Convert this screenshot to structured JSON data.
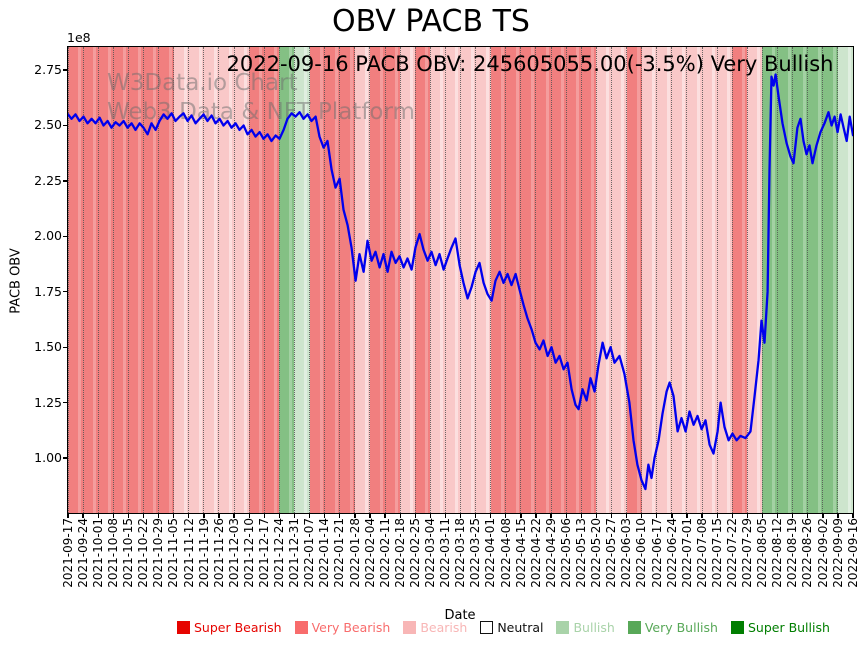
{
  "title": "OBV PACB TS",
  "subtitle": "2022-09-16 PACB OBV: 245605055.00(-3.5%) Very Bullish",
  "watermark": {
    "line1": "W3Data.io Chart",
    "line2": "Web3 Data & NFT Platform"
  },
  "axes": {
    "y_label": "PACB OBV",
    "x_label": "Date",
    "y_offset_text": "1e8"
  },
  "legend": [
    {
      "label": "Super Bearish",
      "swatch": "#e60400",
      "text": "#e60400",
      "border": ""
    },
    {
      "label": "Very Bearish",
      "swatch": "#f86c6c",
      "text": "#f86c6c",
      "border": ""
    },
    {
      "label": "Bearish",
      "swatch": "#f8b6b6",
      "text": "#f8b6b6",
      "border": ""
    },
    {
      "label": "Neutral",
      "swatch": "#ffffff",
      "text": "#111111",
      "border": "#111111"
    },
    {
      "label": "Bullish",
      "swatch": "#a9d3a9",
      "text": "#a9d3a9",
      "border": ""
    },
    {
      "label": "Very Bullish",
      "swatch": "#58a858",
      "text": "#58a858",
      "border": ""
    },
    {
      "label": "Super Bullish",
      "swatch": "#007e00",
      "text": "#007e00",
      "border": ""
    }
  ],
  "chart_data": {
    "type": "line",
    "title": "OBV PACB TS",
    "xlabel": "Date",
    "ylabel": "PACB OBV",
    "y_scale": "1e8",
    "ylim": [
      0.752,
      2.854
    ],
    "y_ticks": [
      "1.00",
      "1.25",
      "1.50",
      "1.75",
      "2.00",
      "2.25",
      "2.50",
      "2.75"
    ],
    "grid": "vertical-dotted",
    "legend_position": "bottom",
    "x_tick_labels": [
      "2021-09-17",
      "2021-09-24",
      "2021-10-01",
      "2021-10-08",
      "2021-10-15",
      "2021-10-22",
      "2021-10-29",
      "2021-11-05",
      "2021-11-12",
      "2021-11-19",
      "2021-11-26",
      "2021-12-03",
      "2021-12-10",
      "2021-12-17",
      "2021-12-24",
      "2021-12-31",
      "2022-01-07",
      "2022-01-14",
      "2022-01-21",
      "2022-01-28",
      "2022-02-04",
      "2022-02-11",
      "2022-02-18",
      "2022-02-25",
      "2022-03-04",
      "2022-03-11",
      "2022-03-18",
      "2022-03-25",
      "2022-04-01",
      "2022-04-08",
      "2022-04-15",
      "2022-04-22",
      "2022-04-29",
      "2022-05-06",
      "2022-05-13",
      "2022-05-20",
      "2022-05-27",
      "2022-06-03",
      "2022-06-10",
      "2022-06-17",
      "2022-06-24",
      "2022-07-01",
      "2022-07-08",
      "2022-07-15",
      "2022-07-22",
      "2022-07-29",
      "2022-08-05",
      "2022-08-12",
      "2022-08-19",
      "2022-08-26",
      "2022-09-02",
      "2022-09-09",
      "2022-09-16"
    ],
    "bands": {
      "colors": {
        "super_bearish": {
          "base": "#f04a4a",
          "alt": "#f04a4a"
        },
        "very_bearish": {
          "base": "#f17f7f",
          "alt": "#f49d9d"
        },
        "bearish": {
          "base": "#f9c8c8",
          "alt": "#fcdfdf"
        },
        "neutral": {
          "base": "#ffffff",
          "alt": "#ffffff"
        },
        "bullish": {
          "base": "#cde5cd",
          "alt": "#e0efe0"
        },
        "very_bullish": {
          "base": "#84c084",
          "alt": "#a3d1a3"
        },
        "super_bullish": {
          "base": "#3c9a3c",
          "alt": "#3c9a3c"
        }
      },
      "weekly": [
        "very_bearish",
        "very_bearish",
        "very_bearish",
        "very_bearish",
        "very_bearish",
        "very_bearish",
        "very_bearish",
        "bearish",
        "bearish",
        "bearish",
        "bearish",
        "bearish",
        "very_bearish",
        "very_bearish",
        "very_bullish",
        "bullish",
        "very_bearish",
        "very_bearish",
        "very_bearish",
        "bearish",
        "very_bearish",
        "very_bearish",
        "bearish",
        "very_bearish",
        "bearish",
        "bearish",
        "bearish",
        "bearish",
        "very_bearish",
        "very_bearish",
        "very_bearish",
        "very_bearish",
        "very_bearish",
        "very_bearish",
        "very_bearish",
        "bearish",
        "bearish",
        "very_bearish",
        "bearish",
        "bearish",
        "bearish",
        "bearish",
        "bearish",
        "bearish",
        "very_bearish",
        "bearish",
        "very_bullish",
        "very_bullish",
        "very_bullish",
        "very_bullish",
        "very_bullish",
        "bullish"
      ]
    },
    "series": [
      {
        "name": "PACB OBV",
        "color": "#0000ee",
        "x_unit": "weeks from 2021-09-17 (0 to 52)",
        "points": [
          [
            0,
            2.55
          ],
          [
            0.23,
            2.53
          ],
          [
            0.5,
            2.55
          ],
          [
            0.76,
            2.52
          ],
          [
            1.03,
            2.54
          ],
          [
            1.29,
            2.51
          ],
          [
            1.56,
            2.53
          ],
          [
            1.82,
            2.51
          ],
          [
            2.09,
            2.535
          ],
          [
            2.35,
            2.5
          ],
          [
            2.62,
            2.52
          ],
          [
            2.88,
            2.49
          ],
          [
            3.15,
            2.515
          ],
          [
            3.41,
            2.5
          ],
          [
            3.68,
            2.52
          ],
          [
            3.94,
            2.49
          ],
          [
            4.21,
            2.51
          ],
          [
            4.47,
            2.48
          ],
          [
            4.74,
            2.51
          ],
          [
            5,
            2.49
          ],
          [
            5.27,
            2.46
          ],
          [
            5.53,
            2.51
          ],
          [
            5.8,
            2.48
          ],
          [
            6.06,
            2.52
          ],
          [
            6.33,
            2.55
          ],
          [
            6.59,
            2.53
          ],
          [
            6.86,
            2.555
          ],
          [
            7.12,
            2.52
          ],
          [
            7.39,
            2.54
          ],
          [
            7.65,
            2.555
          ],
          [
            7.92,
            2.52
          ],
          [
            8.18,
            2.545
          ],
          [
            8.45,
            2.51
          ],
          [
            8.71,
            2.53
          ],
          [
            8.98,
            2.55
          ],
          [
            9.24,
            2.52
          ],
          [
            9.51,
            2.545
          ],
          [
            9.77,
            2.51
          ],
          [
            10.04,
            2.53
          ],
          [
            10.3,
            2.5
          ],
          [
            10.57,
            2.52
          ],
          [
            10.83,
            2.49
          ],
          [
            11.1,
            2.51
          ],
          [
            11.36,
            2.48
          ],
          [
            11.63,
            2.5
          ],
          [
            11.89,
            2.46
          ],
          [
            12.16,
            2.48
          ],
          [
            12.42,
            2.45
          ],
          [
            12.69,
            2.47
          ],
          [
            12.95,
            2.44
          ],
          [
            13.22,
            2.46
          ],
          [
            13.48,
            2.43
          ],
          [
            13.75,
            2.455
          ],
          [
            14.01,
            2.44
          ],
          [
            14.28,
            2.48
          ],
          [
            14.54,
            2.53
          ],
          [
            14.81,
            2.555
          ],
          [
            15.07,
            2.54
          ],
          [
            15.34,
            2.56
          ],
          [
            15.6,
            2.53
          ],
          [
            15.87,
            2.55
          ],
          [
            16.13,
            2.52
          ],
          [
            16.4,
            2.54
          ],
          [
            16.66,
            2.45
          ],
          [
            16.93,
            2.4
          ],
          [
            17.19,
            2.43
          ],
          [
            17.46,
            2.3
          ],
          [
            17.72,
            2.22
          ],
          [
            17.99,
            2.26
          ],
          [
            18.25,
            2.12
          ],
          [
            18.52,
            2.05
          ],
          [
            18.78,
            1.95
          ],
          [
            19.05,
            1.8
          ],
          [
            19.31,
            1.92
          ],
          [
            19.58,
            1.84
          ],
          [
            19.84,
            1.98
          ],
          [
            20.11,
            1.89
          ],
          [
            20.37,
            1.93
          ],
          [
            20.64,
            1.86
          ],
          [
            20.9,
            1.92
          ],
          [
            21.17,
            1.84
          ],
          [
            21.43,
            1.93
          ],
          [
            21.7,
            1.88
          ],
          [
            21.96,
            1.91
          ],
          [
            22.23,
            1.86
          ],
          [
            22.49,
            1.9
          ],
          [
            22.76,
            1.85
          ],
          [
            23.02,
            1.95
          ],
          [
            23.29,
            2.01
          ],
          [
            23.55,
            1.94
          ],
          [
            23.82,
            1.89
          ],
          [
            24.08,
            1.93
          ],
          [
            24.35,
            1.87
          ],
          [
            24.61,
            1.92
          ],
          [
            24.88,
            1.85
          ],
          [
            25.14,
            1.9
          ],
          [
            25.41,
            1.95
          ],
          [
            25.67,
            1.99
          ],
          [
            25.94,
            1.87
          ],
          [
            26.2,
            1.79
          ],
          [
            26.47,
            1.72
          ],
          [
            26.73,
            1.77
          ],
          [
            27,
            1.84
          ],
          [
            27.26,
            1.88
          ],
          [
            27.53,
            1.79
          ],
          [
            27.79,
            1.74
          ],
          [
            28.06,
            1.71
          ],
          [
            28.32,
            1.8
          ],
          [
            28.59,
            1.84
          ],
          [
            28.85,
            1.79
          ],
          [
            29.12,
            1.83
          ],
          [
            29.38,
            1.78
          ],
          [
            29.65,
            1.83
          ],
          [
            29.91,
            1.76
          ],
          [
            30.18,
            1.69
          ],
          [
            30.44,
            1.63
          ],
          [
            30.71,
            1.58
          ],
          [
            30.97,
            1.52
          ],
          [
            31.24,
            1.49
          ],
          [
            31.5,
            1.53
          ],
          [
            31.77,
            1.46
          ],
          [
            32.03,
            1.5
          ],
          [
            32.3,
            1.43
          ],
          [
            32.56,
            1.46
          ],
          [
            32.83,
            1.4
          ],
          [
            33.09,
            1.43
          ],
          [
            33.36,
            1.31
          ],
          [
            33.62,
            1.24
          ],
          [
            33.82,
            1.22
          ],
          [
            34.08,
            1.31
          ],
          [
            34.35,
            1.26
          ],
          [
            34.61,
            1.36
          ],
          [
            34.88,
            1.3
          ],
          [
            35.14,
            1.42
          ],
          [
            35.41,
            1.52
          ],
          [
            35.67,
            1.45
          ],
          [
            35.94,
            1.5
          ],
          [
            36.2,
            1.43
          ],
          [
            36.53,
            1.46
          ],
          [
            36.86,
            1.38
          ],
          [
            37.19,
            1.25
          ],
          [
            37.46,
            1.08
          ],
          [
            37.72,
            0.97
          ],
          [
            37.99,
            0.9
          ],
          [
            38.25,
            0.86
          ],
          [
            38.45,
            0.97
          ],
          [
            38.65,
            0.91
          ],
          [
            38.85,
            1
          ],
          [
            39.12,
            1.08
          ],
          [
            39.38,
            1.2
          ],
          [
            39.65,
            1.3
          ],
          [
            39.85,
            1.34
          ],
          [
            40.11,
            1.28
          ],
          [
            40.38,
            1.12
          ],
          [
            40.64,
            1.18
          ],
          [
            40.91,
            1.12
          ],
          [
            41.17,
            1.21
          ],
          [
            41.44,
            1.15
          ],
          [
            41.7,
            1.19
          ],
          [
            41.97,
            1.13
          ],
          [
            42.23,
            1.17
          ],
          [
            42.5,
            1.06
          ],
          [
            42.76,
            1.02
          ],
          [
            43.03,
            1.12
          ],
          [
            43.23,
            1.25
          ],
          [
            43.49,
            1.14
          ],
          [
            43.76,
            1.08
          ],
          [
            44.02,
            1.11
          ],
          [
            44.29,
            1.08
          ],
          [
            44.55,
            1.1
          ],
          [
            44.88,
            1.09
          ],
          [
            45.21,
            1.12
          ],
          [
            45.48,
            1.28
          ],
          [
            45.74,
            1.44
          ],
          [
            45.94,
            1.62
          ],
          [
            46.14,
            1.52
          ],
          [
            46.34,
            1.75
          ],
          [
            46.47,
            2.3
          ],
          [
            46.6,
            2.72
          ],
          [
            46.74,
            2.68
          ],
          [
            46.87,
            2.73
          ],
          [
            47.07,
            2.63
          ],
          [
            47.33,
            2.51
          ],
          [
            47.6,
            2.42
          ],
          [
            47.86,
            2.36
          ],
          [
            48.06,
            2.33
          ],
          [
            48.32,
            2.49
          ],
          [
            48.52,
            2.53
          ],
          [
            48.72,
            2.43
          ],
          [
            48.92,
            2.37
          ],
          [
            49.12,
            2.41
          ],
          [
            49.32,
            2.33
          ],
          [
            49.58,
            2.41
          ],
          [
            49.85,
            2.47
          ],
          [
            50.11,
            2.51
          ],
          [
            50.38,
            2.56
          ],
          [
            50.58,
            2.5
          ],
          [
            50.78,
            2.54
          ],
          [
            50.98,
            2.47
          ],
          [
            51.18,
            2.55
          ],
          [
            51.38,
            2.49
          ],
          [
            51.58,
            2.43
          ],
          [
            51.78,
            2.54
          ],
          [
            52,
            2.456
          ]
        ]
      }
    ],
    "annotations": [
      "2022-09-16 PACB OBV: 245605055.00(-3.5%) Very Bullish",
      "W3Data.io Chart",
      "Web3 Data & NFT Platform"
    ]
  }
}
